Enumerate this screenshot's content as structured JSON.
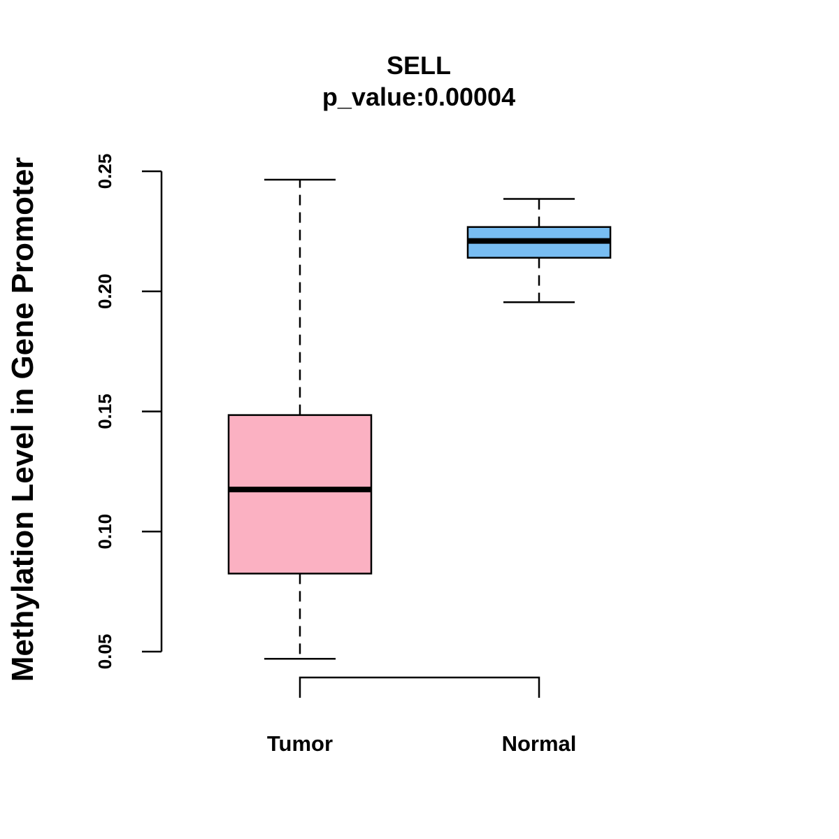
{
  "chart_data": {
    "type": "boxplot",
    "title": "SELL",
    "subtitle": "p_value:0.00004",
    "xlabel": "",
    "ylabel": "Methylation Level in Gene Promoter",
    "categories": [
      "Tumor",
      "Normal"
    ],
    "yticks": [
      0.05,
      0.1,
      0.15,
      0.2,
      0.25
    ],
    "ytick_labels": [
      "0.05",
      "0.10",
      "0.15",
      "0.20",
      "0.25"
    ],
    "ylim": [
      0.047,
      0.247
    ],
    "grid": false,
    "boxes": [
      {
        "name": "Tumor",
        "whisker_low": 0.047,
        "q1": 0.0825,
        "median": 0.1175,
        "q3": 0.1485,
        "whisker_high": 0.2465,
        "color": "#FBB1C2"
      },
      {
        "name": "Normal",
        "whisker_low": 0.1955,
        "q1": 0.214,
        "median": 0.221,
        "q3": 0.2268,
        "whisker_high": 0.2385,
        "color": "#78BDF2"
      }
    ],
    "comparison_bracket": [
      "Tumor",
      "Normal"
    ]
  }
}
